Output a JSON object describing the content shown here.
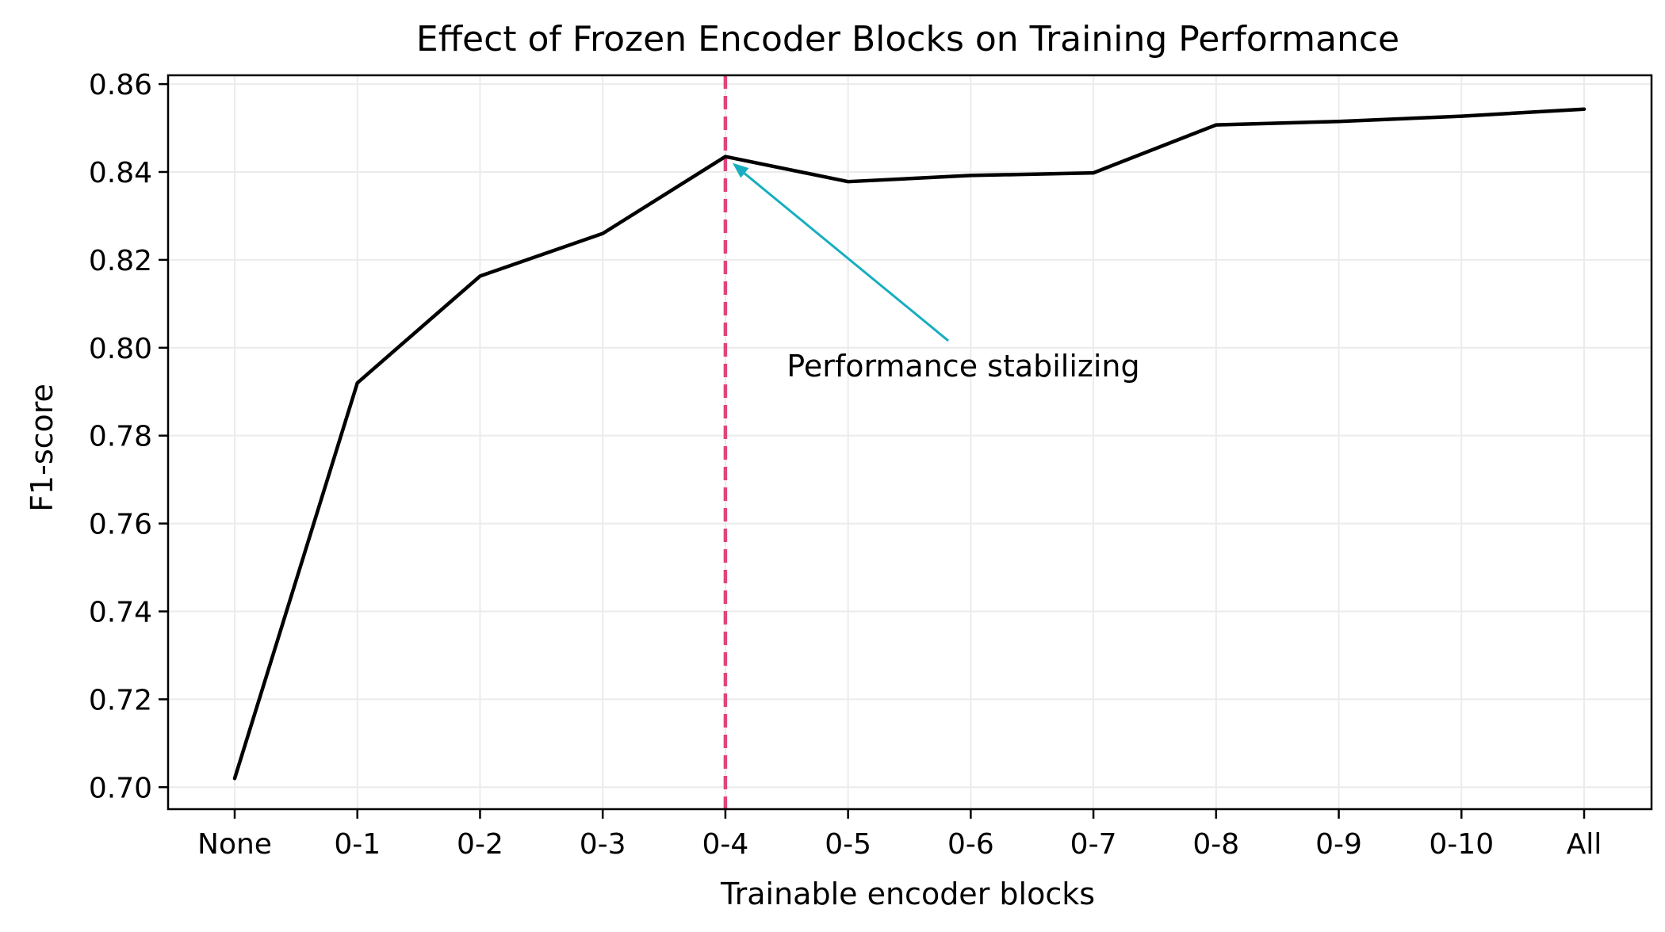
{
  "chart_data": {
    "type": "line",
    "title": "Effect of Frozen Encoder Blocks on Training Performance",
    "xlabel": "Trainable encoder blocks",
    "ylabel": "F1-score",
    "categories": [
      "None",
      "0-1",
      "0-2",
      "0-3",
      "0-4",
      "0-5",
      "0-6",
      "0-7",
      "0-8",
      "0-9",
      "0-10",
      "All"
    ],
    "series": [
      {
        "values": [
          0.702,
          0.792,
          0.8163,
          0.826,
          0.8435,
          0.8378,
          0.8392,
          0.8398,
          0.8507,
          0.8515,
          0.8527,
          0.8543
        ],
        "color": "#000000"
      }
    ],
    "ylim": [
      0.695,
      0.862
    ],
    "yticks": [
      0.7,
      0.72,
      0.74,
      0.76,
      0.78,
      0.8,
      0.82,
      0.84,
      0.86
    ],
    "ytick_labels": [
      "0.70",
      "0.72",
      "0.74",
      "0.76",
      "0.78",
      "0.80",
      "0.82",
      "0.84",
      "0.86"
    ],
    "grid": true,
    "reference_line": {
      "category": "0-4",
      "style": "dashed",
      "color": "#e0457b"
    },
    "annotation": {
      "text": "Performance stabilizing",
      "target_category": "0-4",
      "target_value": 0.8435,
      "text_category_position": 4.5,
      "text_value": 0.7935,
      "color": "#17aec0"
    }
  }
}
